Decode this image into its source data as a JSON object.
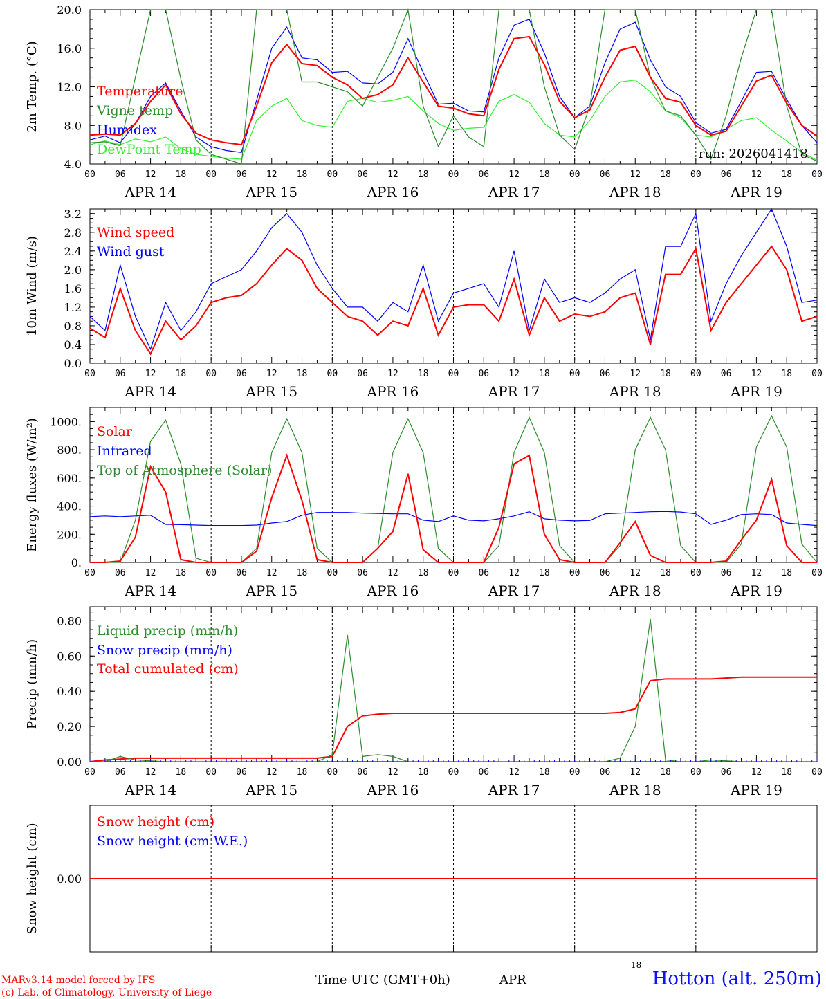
{
  "colors": {
    "red": "#ff0000",
    "green": "#2e8b2e",
    "blue": "#0000ff",
    "lightgreen": "#33ee33"
  },
  "footer": {
    "model_line1": "MARv3.14 model forced by IFS",
    "model_line2": "(c) Lab. of Climatology, University of Liege",
    "time_label": "Time UTC (GMT+0h)",
    "month": "APR",
    "day_marker": "18",
    "station": "Hotton (alt. 250m)"
  },
  "x_axis": {
    "hour_ticks": [
      "00",
      "06",
      "12",
      "18",
      "00",
      "06",
      "12",
      "18",
      "00",
      "06",
      "12",
      "18",
      "00",
      "06",
      "12",
      "18",
      "00",
      "06",
      "12",
      "18",
      "00",
      "06",
      "12",
      "18",
      "00"
    ],
    "day_labels": [
      "APR 14",
      "APR 15",
      "APR 16",
      "APR 17",
      "APR 18",
      "APR 19"
    ],
    "hours_total": 144
  },
  "chart_data": [
    {
      "type": "line",
      "ylabel": "2m Temp. (°C)",
      "ylim": [
        4.0,
        20.0
      ],
      "yticks": [
        "4.0",
        "8.0",
        "12.0",
        "16.0",
        "20.0"
      ],
      "annotation": "run: 2026041418",
      "x_hours": [
        0,
        3,
        6,
        9,
        12,
        15,
        18,
        21,
        24,
        27,
        30,
        33,
        36,
        39,
        42,
        45,
        48,
        51,
        54,
        57,
        60,
        63,
        66,
        69,
        72,
        75,
        78,
        81,
        84,
        87,
        90,
        93,
        96,
        99,
        102,
        105,
        108,
        111,
        114,
        117,
        120,
        123,
        126,
        129,
        132,
        135,
        138,
        141,
        144
      ],
      "series": [
        {
          "name": "Temperature",
          "color": "red",
          "values": [
            7.0,
            7.1,
            7.0,
            8.2,
            10.5,
            12.2,
            9.2,
            7.2,
            6.5,
            6.2,
            6.0,
            10.0,
            14.5,
            16.4,
            14.4,
            14.2,
            13.0,
            12.2,
            10.8,
            11.2,
            12.2,
            15.0,
            12.5,
            10.0,
            9.8,
            9.2,
            9.0,
            13.8,
            17.0,
            17.2,
            14.3,
            10.5,
            8.8,
            9.6,
            13.0,
            15.8,
            16.2,
            13.0,
            10.8,
            10.4,
            8.0,
            7.0,
            7.4,
            10.0,
            12.6,
            13.2,
            10.3,
            8.0,
            6.9
          ]
        },
        {
          "name": "Vigne temp",
          "color": "green",
          "values": [
            6.2,
            6.3,
            5.9,
            13.0,
            20.5,
            20.5,
            12.8,
            6.5,
            5.0,
            4.5,
            4.0,
            20.5,
            20.5,
            20.5,
            12.5,
            12.5,
            12.0,
            11.5,
            10.0,
            13.0,
            16.0,
            20.5,
            10.0,
            5.8,
            9.0,
            6.8,
            5.8,
            20.5,
            20.5,
            20.5,
            12.0,
            7.0,
            5.5,
            10.0,
            20.5,
            20.5,
            20.5,
            13.0,
            9.5,
            9.0,
            7.0,
            4.5,
            9.0,
            15.0,
            20.5,
            20.5,
            10.0,
            5.0,
            4.3
          ]
        },
        {
          "name": "Humidex",
          "color": "blue",
          "values": [
            6.5,
            6.9,
            6.2,
            8.2,
            11.0,
            12.4,
            9.5,
            6.8,
            5.8,
            5.4,
            5.2,
            10.6,
            16.0,
            18.2,
            15.0,
            14.8,
            13.5,
            13.6,
            12.4,
            12.3,
            13.5,
            17.0,
            13.5,
            10.2,
            10.3,
            9.5,
            9.4,
            15.0,
            18.4,
            19.0,
            15.5,
            11.0,
            8.8,
            10.0,
            14.5,
            18.0,
            18.7,
            14.8,
            12.0,
            11.0,
            8.3,
            7.2,
            7.6,
            10.5,
            13.5,
            13.6,
            10.7,
            8.0,
            6.2
          ]
        },
        {
          "name": "DewPoint Temp",
          "color": "lightgreen",
          "values": [
            6.0,
            6.4,
            6.0,
            6.6,
            6.3,
            6.8,
            5.6,
            5.0,
            4.8,
            4.6,
            4.5,
            8.5,
            10.0,
            10.8,
            8.5,
            8.0,
            7.8,
            10.5,
            10.8,
            10.4,
            10.6,
            11.0,
            9.5,
            8.2,
            7.5,
            7.7,
            7.8,
            10.5,
            11.2,
            10.4,
            8.2,
            7.0,
            6.8,
            8.5,
            11.0,
            12.5,
            12.7,
            11.5,
            9.5,
            8.8,
            7.0,
            6.8,
            7.6,
            8.5,
            8.8,
            7.5,
            6.4,
            5.2,
            4.4
          ]
        }
      ]
    },
    {
      "type": "line",
      "ylabel": "10m Wind (m/s)",
      "ylim": [
        0.0,
        3.3
      ],
      "yticks": [
        "0.0",
        "0.4",
        "0.8",
        "1.2",
        "1.6",
        "2.0",
        "2.4",
        "2.8",
        "3.2"
      ],
      "x_hours": [
        0,
        3,
        6,
        9,
        12,
        15,
        18,
        21,
        24,
        27,
        30,
        33,
        36,
        39,
        42,
        45,
        48,
        51,
        54,
        57,
        60,
        63,
        66,
        69,
        72,
        75,
        78,
        81,
        84,
        87,
        90,
        93,
        96,
        99,
        102,
        105,
        108,
        111,
        114,
        117,
        120,
        123,
        126,
        129,
        132,
        135,
        138,
        141,
        144
      ],
      "series": [
        {
          "name": "Wind speed",
          "color": "red",
          "values": [
            0.75,
            0.55,
            1.6,
            0.7,
            0.2,
            0.9,
            0.5,
            0.8,
            1.3,
            1.4,
            1.45,
            1.7,
            2.1,
            2.45,
            2.2,
            1.6,
            1.3,
            1.0,
            0.9,
            0.6,
            0.9,
            0.8,
            1.6,
            0.6,
            1.2,
            1.25,
            1.25,
            0.9,
            1.8,
            0.6,
            1.4,
            0.9,
            1.05,
            1.0,
            1.1,
            1.4,
            1.5,
            0.4,
            1.9,
            1.9,
            2.45,
            0.7,
            1.3,
            1.7,
            2.1,
            2.5,
            2.0,
            0.9,
            1.0
          ]
        },
        {
          "name": "Wind gust",
          "color": "blue",
          "values": [
            1.0,
            0.7,
            2.1,
            1.0,
            0.3,
            1.3,
            0.7,
            1.1,
            1.7,
            1.85,
            2.0,
            2.4,
            2.9,
            3.2,
            2.8,
            2.1,
            1.6,
            1.2,
            1.2,
            0.9,
            1.3,
            1.1,
            2.1,
            0.9,
            1.5,
            1.6,
            1.7,
            1.2,
            2.4,
            0.7,
            1.8,
            1.3,
            1.4,
            1.3,
            1.5,
            1.8,
            2.0,
            0.5,
            2.5,
            2.5,
            3.2,
            0.9,
            1.7,
            2.3,
            2.8,
            3.3,
            2.5,
            1.3,
            1.35
          ]
        }
      ]
    },
    {
      "type": "line",
      "ylabel": "Energy fluxes (W/m²)",
      "ylim": [
        0,
        1100
      ],
      "yticks": [
        "0.",
        "200.",
        "400.",
        "600.",
        "800.",
        "1000."
      ],
      "x_hours": [
        0,
        3,
        6,
        9,
        12,
        15,
        18,
        21,
        24,
        27,
        30,
        33,
        36,
        39,
        42,
        45,
        48,
        51,
        54,
        57,
        60,
        63,
        66,
        69,
        72,
        75,
        78,
        81,
        84,
        87,
        90,
        93,
        96,
        99,
        102,
        105,
        108,
        111,
        114,
        117,
        120,
        123,
        126,
        129,
        132,
        135,
        138,
        141,
        144
      ],
      "series": [
        {
          "name": "Solar",
          "color": "red",
          "values": [
            0,
            0,
            10,
            180,
            680,
            500,
            20,
            0,
            0,
            0,
            0,
            80,
            460,
            760,
            440,
            20,
            0,
            0,
            0,
            100,
            220,
            630,
            90,
            0,
            0,
            0,
            0,
            250,
            700,
            760,
            200,
            20,
            0,
            0,
            0,
            140,
            290,
            50,
            0,
            0,
            0,
            0,
            10,
            160,
            300,
            590,
            120,
            0,
            0
          ]
        },
        {
          "name": "Infrared",
          "color": "blue",
          "values": [
            325,
            330,
            325,
            330,
            335,
            270,
            268,
            265,
            262,
            262,
            262,
            265,
            280,
            290,
            335,
            355,
            355,
            355,
            350,
            348,
            345,
            345,
            300,
            290,
            330,
            300,
            295,
            310,
            330,
            360,
            310,
            300,
            295,
            298,
            345,
            350,
            355,
            360,
            362,
            358,
            345,
            270,
            300,
            340,
            345,
            340,
            280,
            270,
            262
          ]
        },
        {
          "name": "Top of Atmosphere (Solar)",
          "color": "green",
          "values": [
            0,
            0,
            0,
            300,
            860,
            1010,
            700,
            30,
            0,
            0,
            0,
            100,
            780,
            1020,
            780,
            100,
            0,
            0,
            0,
            100,
            780,
            1020,
            780,
            100,
            0,
            0,
            0,
            120,
            780,
            1030,
            780,
            120,
            0,
            0,
            0,
            120,
            800,
            1030,
            800,
            120,
            0,
            0,
            0,
            130,
            820,
            1040,
            820,
            130,
            0
          ]
        }
      ]
    },
    {
      "type": "line",
      "ylabel": "Precip (mm/h)",
      "ylim": [
        0.0,
        0.88
      ],
      "yticks": [
        "0.00",
        "0.20",
        "0.40",
        "0.60",
        "0.80"
      ],
      "x_hours": [
        0,
        3,
        6,
        9,
        12,
        15,
        18,
        21,
        24,
        27,
        30,
        33,
        36,
        39,
        42,
        45,
        48,
        51,
        54,
        57,
        60,
        63,
        66,
        69,
        72,
        75,
        78,
        81,
        84,
        87,
        90,
        93,
        96,
        99,
        102,
        105,
        108,
        111,
        114,
        117,
        120,
        123,
        126,
        129,
        132,
        135,
        138,
        141,
        144
      ],
      "series": [
        {
          "name": "Liquid precip (mm/h)",
          "color": "green",
          "values": [
            0,
            0,
            0.03,
            0.01,
            0.005,
            0,
            0,
            0,
            0,
            0,
            0,
            0,
            0,
            0,
            0,
            0,
            0.04,
            0.72,
            0.03,
            0.04,
            0.03,
            0,
            0,
            0,
            0,
            0,
            0,
            0,
            0,
            0,
            0,
            0,
            0,
            0,
            0,
            0.02,
            0.2,
            0.81,
            0.01,
            0,
            0,
            0.01,
            0.005,
            0,
            0,
            0,
            0,
            0,
            0
          ]
        },
        {
          "name": "Snow precip (mm/h)",
          "color": "blue",
          "values": [
            0,
            0,
            0,
            0,
            0,
            0,
            0,
            0,
            0,
            0,
            0,
            0,
            0,
            0,
            0,
            0,
            0,
            0,
            0,
            0,
            0,
            0,
            0,
            0,
            0,
            0,
            0,
            0,
            0,
            0,
            0,
            0,
            0,
            0,
            0,
            0,
            0,
            0,
            0,
            0,
            0,
            0,
            0,
            0,
            0,
            0,
            0,
            0,
            0
          ]
        },
        {
          "name": "Total cumulated (cm)",
          "color": "red",
          "values": [
            0,
            0.01,
            0.015,
            0.02,
            0.02,
            0.02,
            0.02,
            0.02,
            0.02,
            0.02,
            0.02,
            0.02,
            0.02,
            0.02,
            0.02,
            0.02,
            0.03,
            0.2,
            0.26,
            0.27,
            0.275,
            0.275,
            0.275,
            0.275,
            0.275,
            0.275,
            0.275,
            0.275,
            0.275,
            0.275,
            0.275,
            0.275,
            0.275,
            0.275,
            0.275,
            0.28,
            0.3,
            0.46,
            0.47,
            0.47,
            0.47,
            0.47,
            0.475,
            0.48,
            0.48,
            0.48,
            0.48,
            0.48,
            0.48
          ]
        }
      ]
    },
    {
      "type": "line",
      "ylabel": "Snow height (cm)",
      "ylim": [
        -1.0,
        1.0
      ],
      "yticks": [
        "0.00"
      ],
      "x_hours": [
        0,
        144
      ],
      "series": [
        {
          "name": "Snow height (cm)",
          "color": "red",
          "values": [
            0,
            0
          ]
        },
        {
          "name": "Snow height (cm W.E.)",
          "color": "blue",
          "values": [
            0,
            0
          ]
        }
      ]
    }
  ]
}
